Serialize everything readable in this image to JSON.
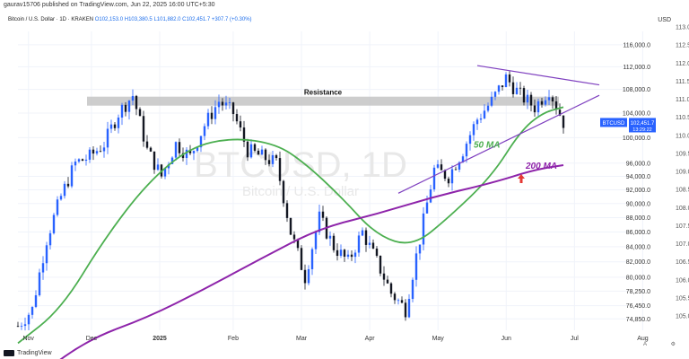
{
  "header": {
    "published": "gaurav15706 published on TradingView.com, Jun 22, 2025 16:00 UTC+5:30",
    "pair": "Bitcoin / U.S. Dollar · 1D · KRAKEN",
    "open": "O102,153.0",
    "high": "H103,380.5",
    "low": "L101,882.0",
    "close": "C102,451.7",
    "change": "+307.7 (+0.30%)",
    "currency": "USD"
  },
  "watermark": {
    "symbol": "BTCUSD, 1D",
    "name": "Bitcoin / U.S. Dollar"
  },
  "annotations": {
    "resistance": "Resistance",
    "ma50": "50 MA",
    "ma200": "200 MA"
  },
  "price_tag": {
    "symbol": "BTCUSD",
    "price": "102,451.7",
    "countdown": "13:29:22"
  },
  "footer": {
    "brand": "TradingView",
    "auto": "A",
    "settings": "⚙"
  },
  "colors": {
    "up": "#2962ff",
    "down": "#131722",
    "ma50": "#4caf50",
    "ma200": "#8e24aa",
    "triangle": "#7e3fbf",
    "resistance": "#c8c8c8",
    "arrow": "#e53935"
  },
  "chart_data": {
    "type": "candlestick",
    "x_ticks": [
      "Nov",
      "Dec",
      "2025",
      "Feb",
      "Mar",
      "Apr",
      "May",
      "Jun",
      "Jul",
      "Aug"
    ],
    "y_ticks_inner": [
      "116,000.0",
      "112,000.0",
      "108,000.0",
      "104,000.0",
      "100,000.0",
      "96,000.0",
      "94,000.0",
      "92,000.0",
      "90,000.0",
      "88,000.0",
      "86,000.0",
      "84,000.0",
      "82,000.0",
      "80,000.0",
      "78,250.0",
      "76,450.0",
      "74,850.0"
    ],
    "y_ticks_outer": [
      "113.0",
      "112.5",
      "112.0",
      "111.5",
      "111.0",
      "110.5",
      "110.0",
      "109.5",
      "109.0",
      "108.5",
      "108.0",
      "107.5",
      "107.0",
      "106.5",
      "106.0",
      "105.5",
      "105.0"
    ],
    "last_price": 102451.7,
    "resistance_level": 106000,
    "series": [
      {
        "name": "50 MA",
        "points": [
          [
            0,
            72000
          ],
          [
            6,
            76000
          ],
          [
            12,
            85000
          ],
          [
            18,
            93000
          ],
          [
            24,
            98500
          ],
          [
            30,
            100000
          ],
          [
            36,
            99000
          ],
          [
            40,
            96000
          ],
          [
            45,
            91000
          ],
          [
            50,
            85500
          ],
          [
            55,
            84000
          ],
          [
            60,
            88000
          ],
          [
            66,
            94000
          ],
          [
            70,
            101000
          ],
          [
            73,
            104000
          ],
          [
            76,
            105000
          ]
        ]
      },
      {
        "name": "200 MA",
        "points": [
          [
            3,
            68500
          ],
          [
            10,
            72500
          ],
          [
            18,
            75000
          ],
          [
            26,
            78500
          ],
          [
            34,
            82500
          ],
          [
            42,
            86500
          ],
          [
            50,
            88500
          ],
          [
            58,
            91000
          ],
          [
            66,
            93000
          ],
          [
            72,
            95000
          ],
          [
            76,
            95700
          ]
        ]
      }
    ],
    "anchors": [
      [
        0,
        74000
      ],
      [
        2,
        76000
      ],
      [
        4,
        85000
      ],
      [
        6,
        91000
      ],
      [
        8,
        96000
      ],
      [
        10,
        97000
      ],
      [
        12,
        99000
      ],
      [
        14,
        104000
      ],
      [
        16,
        107000
      ],
      [
        18,
        98000
      ],
      [
        20,
        94000
      ],
      [
        22,
        99000
      ],
      [
        24,
        97000
      ],
      [
        26,
        102000
      ],
      [
        28,
        106000
      ],
      [
        30,
        104000
      ],
      [
        32,
        98000
      ],
      [
        34,
        97000
      ],
      [
        36,
        96000
      ],
      [
        38,
        86000
      ],
      [
        40,
        80000
      ],
      [
        42,
        88000
      ],
      [
        44,
        84000
      ],
      [
        46,
        82000
      ],
      [
        48,
        86000
      ],
      [
        50,
        82000
      ],
      [
        52,
        78000
      ],
      [
        54,
        76000
      ],
      [
        56,
        85000
      ],
      [
        58,
        95000
      ],
      [
        60,
        94000
      ],
      [
        62,
        98000
      ],
      [
        64,
        103000
      ],
      [
        66,
        106000
      ],
      [
        68,
        110000
      ],
      [
        70,
        107000
      ],
      [
        72,
        105000
      ],
      [
        74,
        108000
      ],
      [
        76,
        102500
      ]
    ]
  }
}
